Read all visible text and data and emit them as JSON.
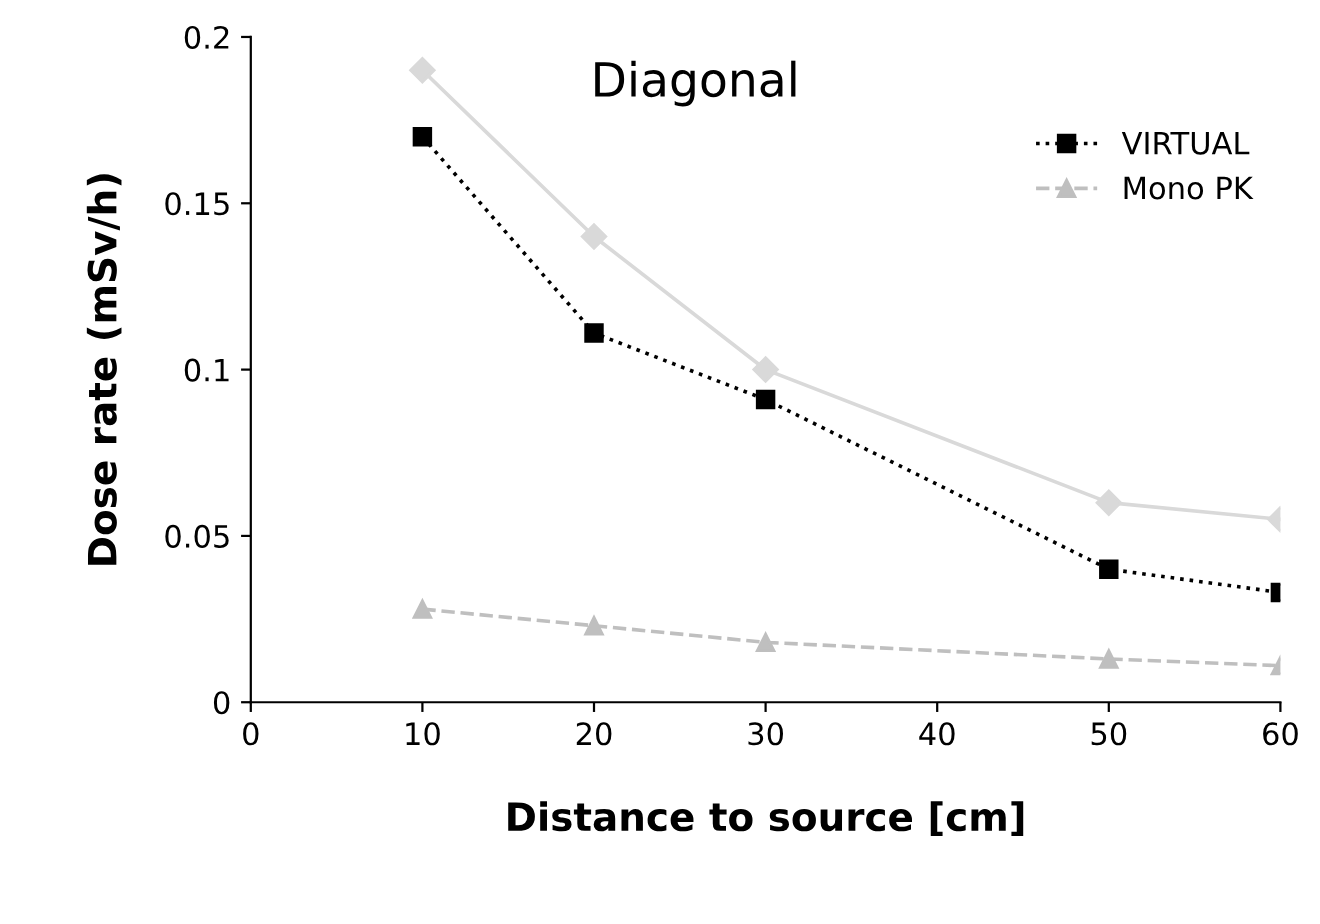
{
  "chart_data": {
    "type": "line",
    "xlabel": "Distance to source [cm]",
    "ylabel": "Dose rate (mSv/h)",
    "annotations": [
      "Diagonal"
    ],
    "x": [
      10,
      20,
      30,
      50,
      60
    ],
    "series": [
      {
        "color": "#d9d9d9",
        "marker": "diamond",
        "line_style": "solid",
        "values": [
          0.19,
          0.14,
          0.1,
          0.06,
          0.055
        ]
      },
      {
        "name": "VIRTUAL",
        "color": "#000000",
        "marker": "square",
        "line_style": "dotted",
        "values": [
          0.17,
          0.111,
          0.091,
          0.04,
          0.033
        ]
      },
      {
        "name": "Mono PK",
        "color": "#bfbfbf",
        "marker": "triangle",
        "line_style": "dashed",
        "values": [
          0.028,
          0.023,
          0.018,
          0.013,
          0.011
        ]
      }
    ],
    "xlim": [
      0,
      60
    ],
    "xticks": [
      0,
      10,
      20,
      30,
      40,
      50,
      60
    ],
    "ylim": [
      0,
      0.2
    ],
    "yticks": [
      0,
      0.05,
      0.1,
      0.15,
      0.2
    ],
    "grid": false,
    "legend": "top right"
  }
}
